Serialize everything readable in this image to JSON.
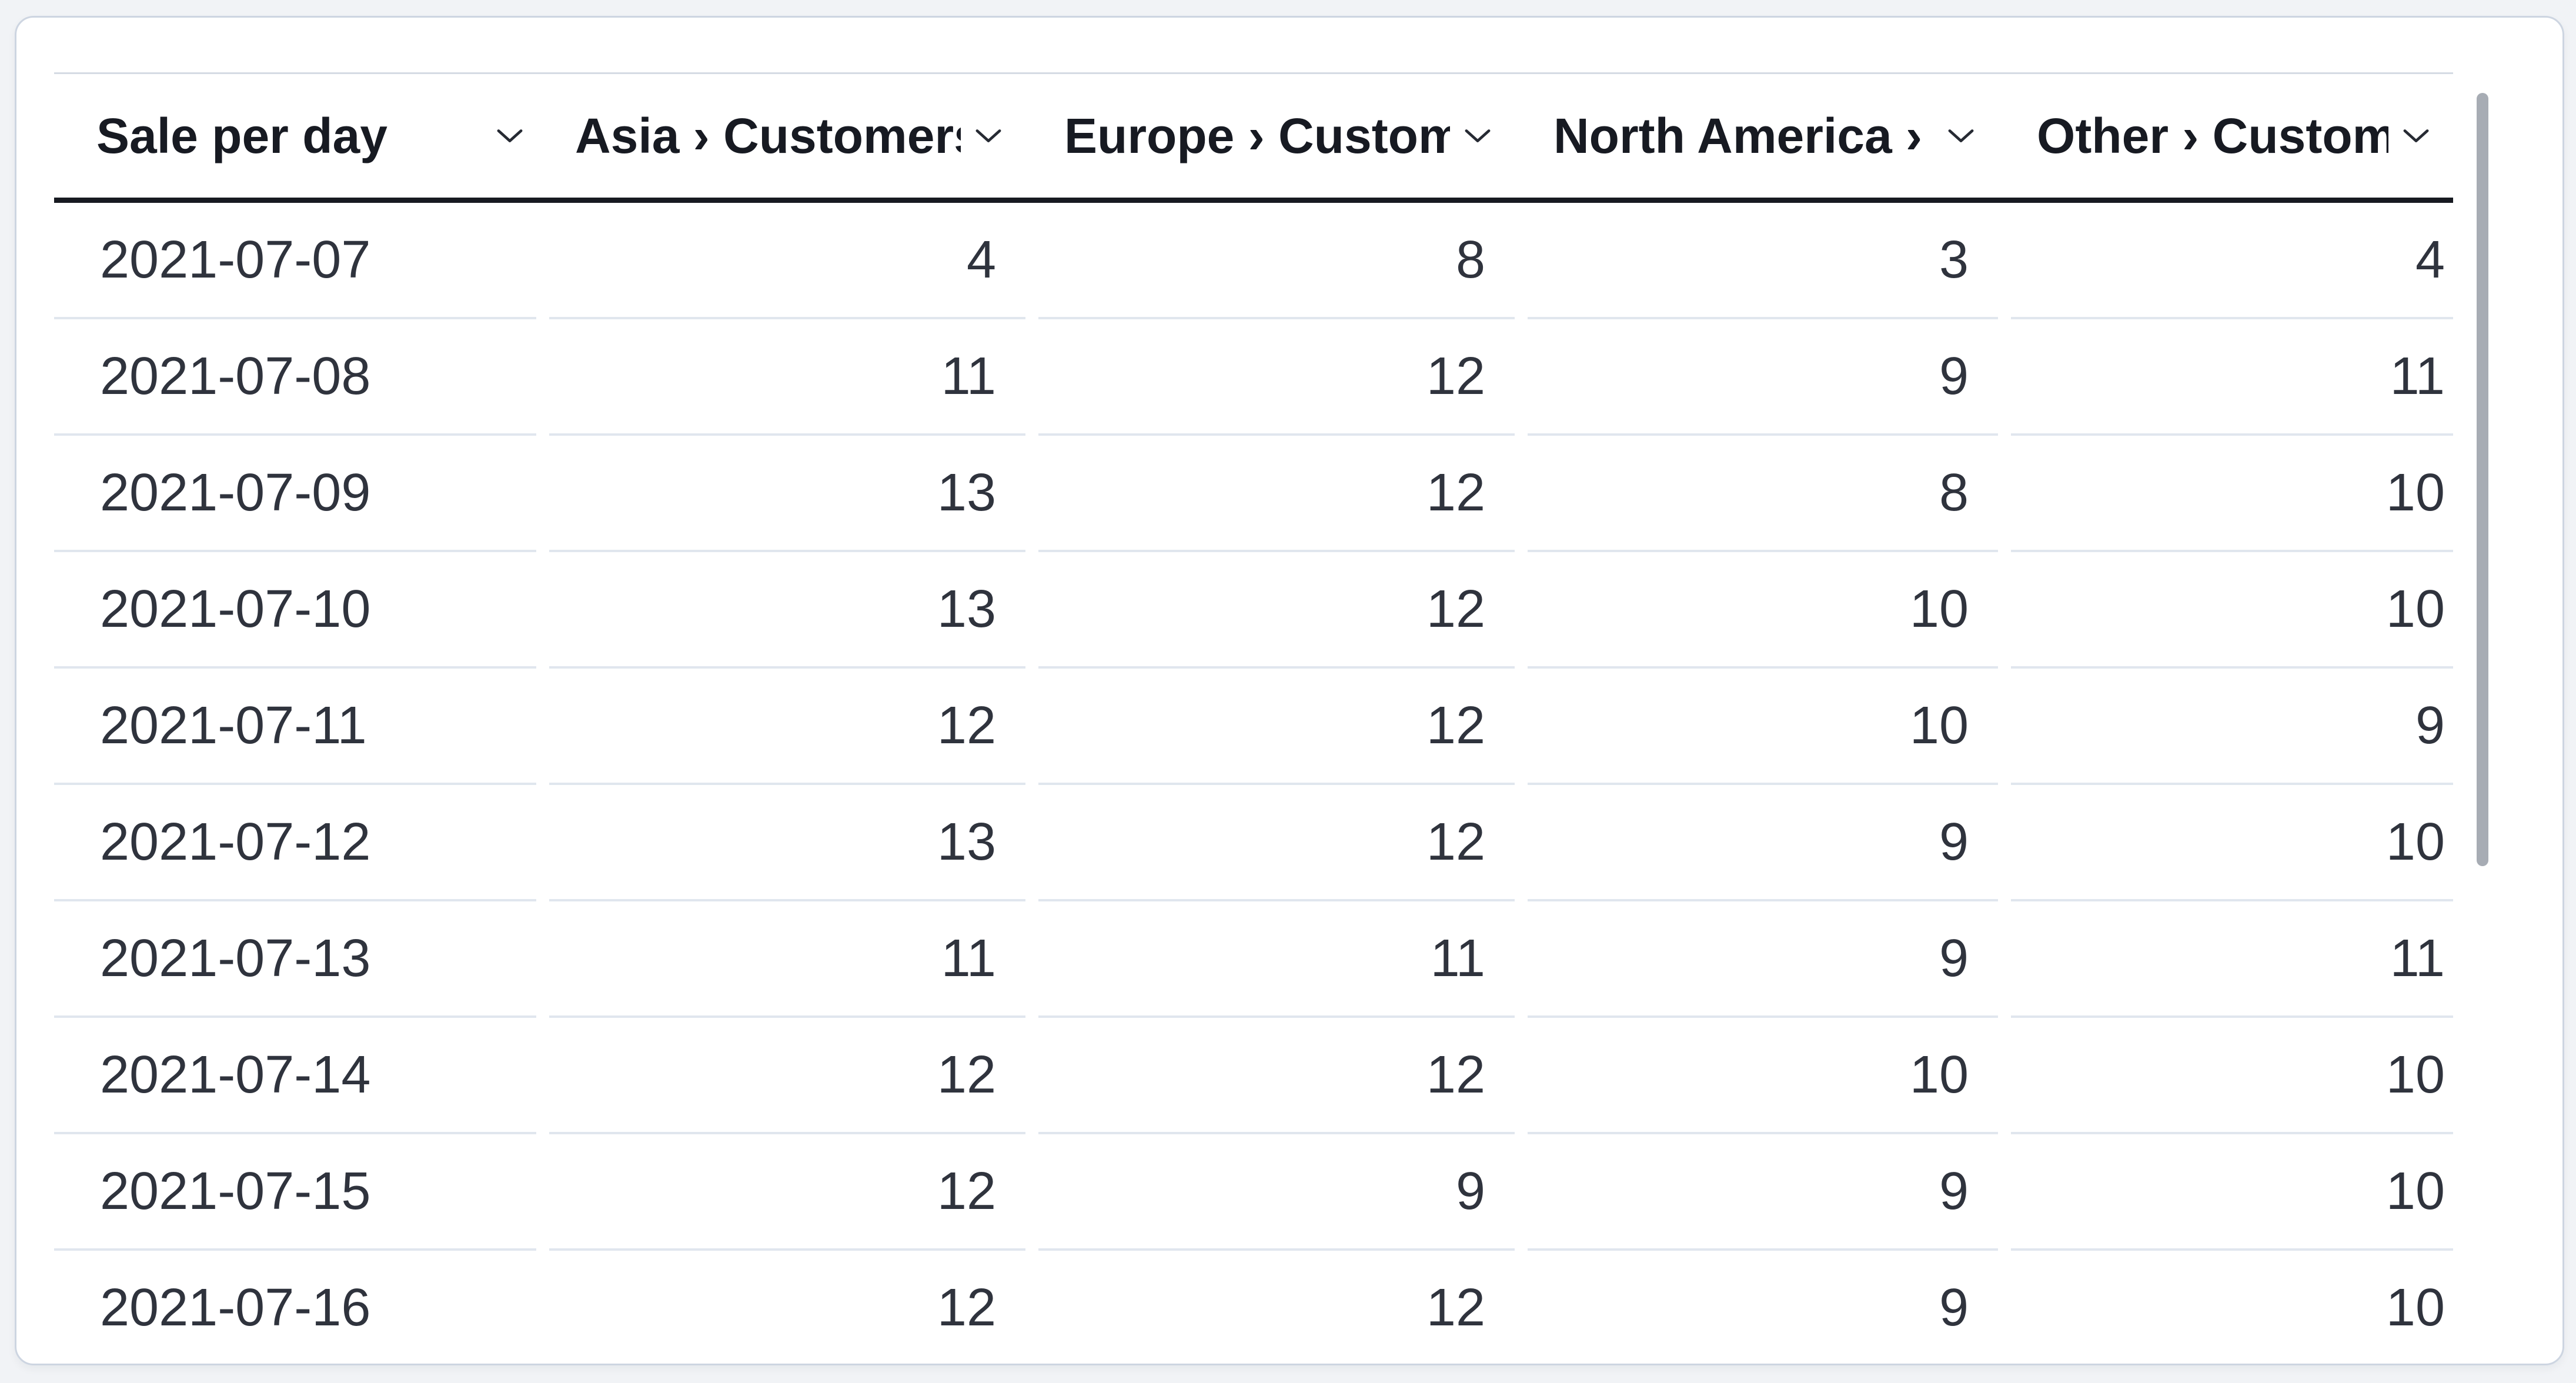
{
  "table": {
    "columns": [
      {
        "label": "Sale per day",
        "sort_icon": "chevron-down"
      },
      {
        "label": "Asia › Customers",
        "sort_icon": "chevron-down"
      },
      {
        "label": "Europe › Custom",
        "sort_icon": "chevron-down"
      },
      {
        "label": "North America ›",
        "sort_icon": "chevron-down"
      },
      {
        "label": "Other › Custome",
        "sort_icon": "chevron-down"
      }
    ],
    "rows": [
      {
        "cells": [
          "2021-07-07",
          "4",
          "8",
          "3",
          "4"
        ]
      },
      {
        "cells": [
          "2021-07-08",
          "11",
          "12",
          "9",
          "11"
        ]
      },
      {
        "cells": [
          "2021-07-09",
          "13",
          "12",
          "8",
          "10"
        ]
      },
      {
        "cells": [
          "2021-07-10",
          "13",
          "12",
          "10",
          "10"
        ]
      },
      {
        "cells": [
          "2021-07-11",
          "12",
          "12",
          "10",
          "9"
        ]
      },
      {
        "cells": [
          "2021-07-12",
          "13",
          "12",
          "9",
          "10"
        ]
      },
      {
        "cells": [
          "2021-07-13",
          "11",
          "11",
          "9",
          "11"
        ]
      },
      {
        "cells": [
          "2021-07-14",
          "12",
          "12",
          "10",
          "10"
        ]
      },
      {
        "cells": [
          "2021-07-15",
          "12",
          "9",
          "9",
          "10"
        ]
      },
      {
        "cells": [
          "2021-07-16",
          "12",
          "12",
          "9",
          "10"
        ]
      }
    ]
  },
  "colors": {
    "page_background": "#f1f3f6",
    "card_background": "#ffffff",
    "card_border": "#cdd5e1",
    "header_text": "#171a22",
    "header_bottom_border": "#171a21",
    "table_top_border": "#d5dbe4",
    "row_separator": "#e0e6ee",
    "cell_text": "#2f333d",
    "scrollbar_thumb": "#a7acb4"
  }
}
